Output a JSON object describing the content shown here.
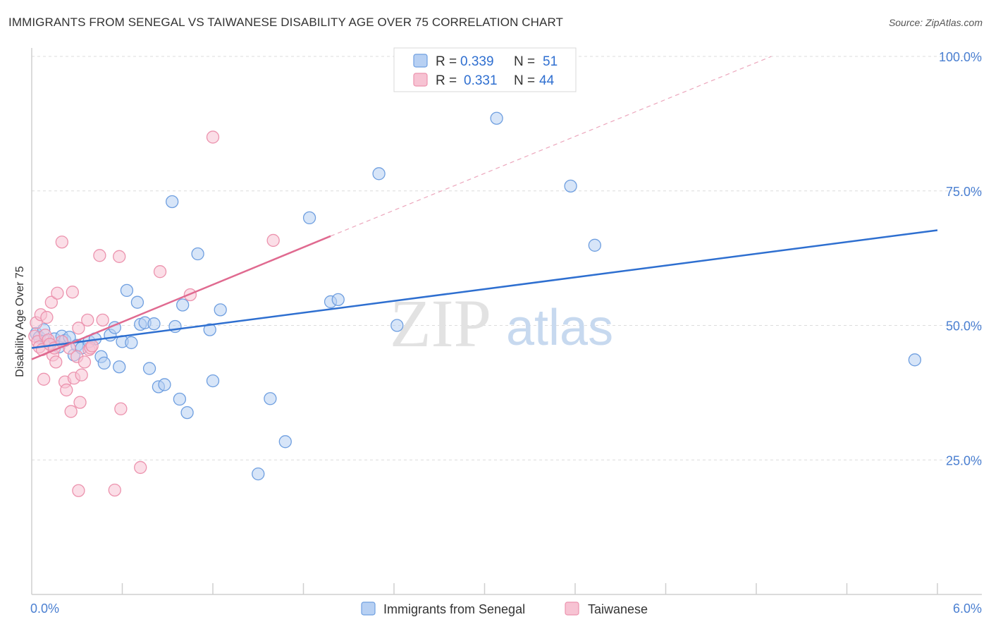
{
  "title": "IMMIGRANTS FROM SENEGAL VS TAIWANESE DISABILITY AGE OVER 75 CORRELATION CHART",
  "source": "Source: ZipAtlas.com",
  "watermark": {
    "zip": "ZIP",
    "atlas": "atlas"
  },
  "chart_data": {
    "type": "scatter",
    "xlabel": "",
    "ylabel": "Disability Age Over 75",
    "xlim": [
      0,
      6
    ],
    "ylim": [
      0,
      100
    ],
    "x_tick_labels": [
      "0.0%",
      "6.0%"
    ],
    "y_ticks": [
      25,
      50,
      75,
      100
    ],
    "y_tick_labels": [
      "25.0%",
      "50.0%",
      "75.0%",
      "100.0%"
    ],
    "grid": true,
    "legend_placement": "top-center",
    "series": [
      {
        "name": "Immigrants from Senegal",
        "color": "#6f9fe0",
        "fill": "#b7d0f3",
        "line_color": "#2e6fd0",
        "R": "0.339",
        "N": "51",
        "trend": [
          [
            0,
            45.8
          ],
          [
            6,
            67.7
          ]
        ],
        "points": [
          [
            0.03,
            48.5
          ],
          [
            0.05,
            47.8
          ],
          [
            0.08,
            49.2
          ],
          [
            0.1,
            47.0
          ],
          [
            0.12,
            46.5
          ],
          [
            0.15,
            47.5
          ],
          [
            0.18,
            46.0
          ],
          [
            0.2,
            48.0
          ],
          [
            0.22,
            47.2
          ],
          [
            0.25,
            47.8
          ],
          [
            0.28,
            44.5
          ],
          [
            0.3,
            46.3
          ],
          [
            0.33,
            45.8
          ],
          [
            0.38,
            47.0
          ],
          [
            0.42,
            47.5
          ],
          [
            0.46,
            44.2
          ],
          [
            0.48,
            43.0
          ],
          [
            0.52,
            48.2
          ],
          [
            0.55,
            49.6
          ],
          [
            0.58,
            42.3
          ],
          [
            0.6,
            47.0
          ],
          [
            0.63,
            56.5
          ],
          [
            0.66,
            46.8
          ],
          [
            0.7,
            54.3
          ],
          [
            0.72,
            50.2
          ],
          [
            0.75,
            50.5
          ],
          [
            0.78,
            42.0
          ],
          [
            0.81,
            50.3
          ],
          [
            0.84,
            38.6
          ],
          [
            0.88,
            39.0
          ],
          [
            0.93,
            73.0
          ],
          [
            0.95,
            49.8
          ],
          [
            0.98,
            36.3
          ],
          [
            1.0,
            53.8
          ],
          [
            1.03,
            33.8
          ],
          [
            1.1,
            63.3
          ],
          [
            1.18,
            49.2
          ],
          [
            1.2,
            39.7
          ],
          [
            1.25,
            52.9
          ],
          [
            1.5,
            22.4
          ],
          [
            1.58,
            36.4
          ],
          [
            1.68,
            28.4
          ],
          [
            1.84,
            70.0
          ],
          [
            1.98,
            54.4
          ],
          [
            2.03,
            54.8
          ],
          [
            2.3,
            78.2
          ],
          [
            2.42,
            50.0
          ],
          [
            3.08,
            88.5
          ],
          [
            3.57,
            75.9
          ],
          [
            3.73,
            64.9
          ],
          [
            5.85,
            43.6
          ]
        ]
      },
      {
        "name": "Taiwanese",
        "color": "#ec93ae",
        "fill": "#f7c3d3",
        "line_color": "#e06a90",
        "R": "0.331",
        "N": "44",
        "trend": [
          [
            0,
            43.7
          ],
          [
            1.98,
            66.6
          ]
        ],
        "trend_ext": [
          [
            1.98,
            66.6
          ],
          [
            4.9,
            100
          ]
        ],
        "points": [
          [
            0.02,
            48.0
          ],
          [
            0.03,
            50.5
          ],
          [
            0.04,
            47.0
          ],
          [
            0.05,
            46.0
          ],
          [
            0.06,
            52.0
          ],
          [
            0.07,
            45.5
          ],
          [
            0.08,
            40.0
          ],
          [
            0.09,
            48.2
          ],
          [
            0.1,
            51.5
          ],
          [
            0.11,
            47.3
          ],
          [
            0.12,
            46.5
          ],
          [
            0.13,
            54.3
          ],
          [
            0.14,
            44.5
          ],
          [
            0.15,
            45.8
          ],
          [
            0.16,
            43.2
          ],
          [
            0.17,
            56.0
          ],
          [
            0.2,
            47.0
          ],
          [
            0.22,
            39.5
          ],
          [
            0.23,
            38.0
          ],
          [
            0.25,
            45.8
          ],
          [
            0.26,
            34.0
          ],
          [
            0.27,
            56.2
          ],
          [
            0.28,
            40.2
          ],
          [
            0.3,
            44.2
          ],
          [
            0.31,
            49.5
          ],
          [
            0.32,
            35.7
          ],
          [
            0.33,
            40.8
          ],
          [
            0.35,
            43.2
          ],
          [
            0.37,
            51.0
          ],
          [
            0.38,
            45.5
          ],
          [
            0.2,
            65.5
          ],
          [
            0.31,
            19.3
          ],
          [
            0.39,
            45.8
          ],
          [
            0.4,
            46.2
          ],
          [
            0.45,
            63.0
          ],
          [
            0.47,
            51.0
          ],
          [
            0.55,
            19.4
          ],
          [
            0.58,
            62.8
          ],
          [
            0.59,
            34.5
          ],
          [
            0.72,
            23.6
          ],
          [
            0.85,
            60.0
          ],
          [
            1.05,
            55.7
          ],
          [
            1.2,
            85.0
          ],
          [
            1.6,
            65.8
          ]
        ]
      }
    ]
  }
}
